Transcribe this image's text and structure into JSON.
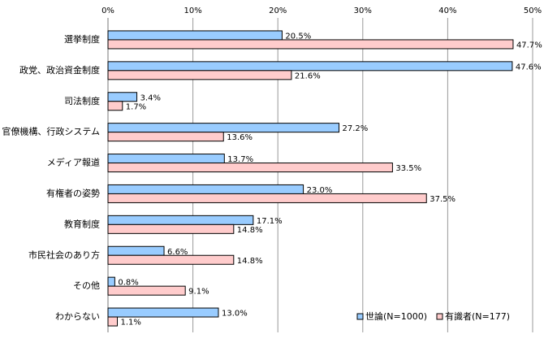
{
  "chart_data": {
    "type": "bar",
    "orientation": "horizontal",
    "categories": [
      "選挙制度",
      "政党、政治資金制度",
      "司法制度",
      "官僚機構、行政システム",
      "メディア報道",
      "有権者の姿勢",
      "教育制度",
      "市民社会のあり方",
      "その他",
      "わからない"
    ],
    "series": [
      {
        "name": "世論(N=1000)",
        "color": "#99ccff",
        "values": [
          20.5,
          47.6,
          3.4,
          27.2,
          13.7,
          23.0,
          17.1,
          6.6,
          0.8,
          13.0
        ],
        "value_labels": [
          "20.5%",
          "47.6%",
          "3.4%",
          "27.2%",
          "13.7%",
          "23.0%",
          "17.1%",
          "6.6%",
          "0.8%",
          "13.0%"
        ]
      },
      {
        "name": "有識者(N=177)",
        "color": "#ffcccc",
        "values": [
          47.7,
          21.6,
          1.7,
          13.6,
          33.5,
          37.5,
          14.8,
          14.8,
          9.1,
          1.1
        ],
        "value_labels": [
          "47.7%",
          "21.6%",
          "1.7%",
          "13.6%",
          "33.5%",
          "37.5%",
          "14.8%",
          "14.8%",
          "9.1%",
          "1.1%"
        ]
      }
    ],
    "xlim": [
      0,
      50
    ],
    "xticks": [
      {
        "value": 0,
        "label": "0%"
      },
      {
        "value": 10,
        "label": "10%"
      },
      {
        "value": 20,
        "label": "20%"
      },
      {
        "value": 30,
        "label": "30%"
      },
      {
        "value": 40,
        "label": "40%"
      },
      {
        "value": 50,
        "label": "50%"
      }
    ],
    "grid": true,
    "legend": "bottom-right"
  }
}
